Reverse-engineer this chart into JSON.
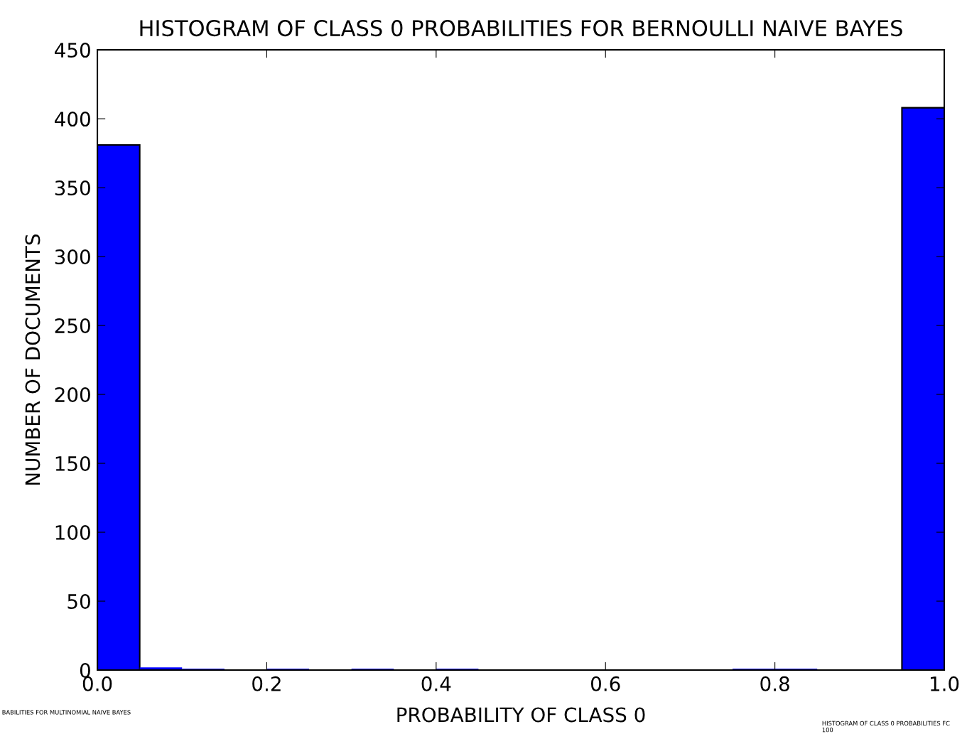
{
  "chart_data": {
    "type": "histogram",
    "title": "HISTOGRAM OF CLASS 0 PROBABILITIES FOR BERNOULLI NAIVE BAYES",
    "xlabel": "PROBABILITY OF CLASS 0",
    "ylabel": "NUMBER OF DOCUMENTS",
    "bins": [
      0.0,
      0.05,
      0.1,
      0.15,
      0.2,
      0.25,
      0.3,
      0.35,
      0.4,
      0.45,
      0.5,
      0.55,
      0.6,
      0.65,
      0.7,
      0.75,
      0.8,
      0.85,
      0.9,
      0.95,
      1.0
    ],
    "values": [
      381,
      2,
      1,
      0,
      1,
      0,
      1,
      0,
      1,
      0,
      0,
      0,
      0,
      0,
      0,
      1,
      1,
      0,
      0,
      408
    ],
    "color": "#0000ff",
    "xlim": [
      0.0,
      1.0
    ],
    "xticks": [
      {
        "value": 0.0,
        "label": "0.0"
      },
      0.2,
      0.4,
      0.6,
      0.8,
      {
        "value": 1.0,
        "label": "1.0"
      }
    ],
    "ylim": [
      0,
      450
    ],
    "yticks": [
      0,
      50,
      100,
      150,
      200,
      250,
      300,
      350,
      400,
      450
    ],
    "grid": false,
    "annotations": [
      "BABILITIES FOR MULTINOMIAL NAIVE BAYES",
      "HISTOGRAM OF CLASS 0 PROBABILITIES FC",
      "100"
    ]
  }
}
